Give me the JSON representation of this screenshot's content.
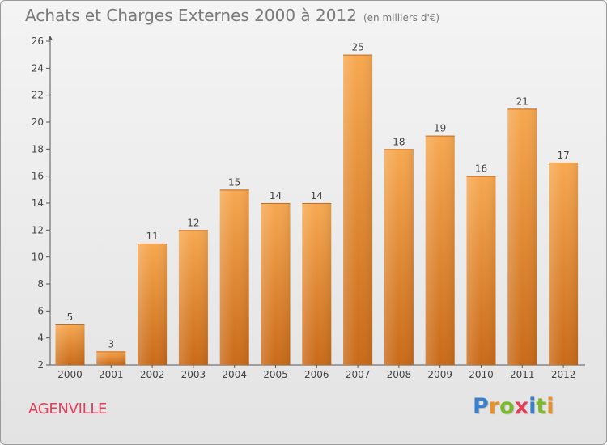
{
  "header": {
    "title": "Achats et Charges Externes 2000 à 2012",
    "unit": "(en milliers d'€)"
  },
  "footer": {
    "town": "AGENVILLE",
    "brand": "Proxiti",
    "brand_colors": [
      "#3a7fc9",
      "#e8902a",
      "#7bb82e",
      "#e0405a",
      "#3a7fc9",
      "#7bb82e",
      "#e8902a"
    ]
  },
  "chart_data": {
    "type": "bar",
    "categories": [
      "2000",
      "2001",
      "2002",
      "2003",
      "2004",
      "2005",
      "2006",
      "2007",
      "2008",
      "2009",
      "2010",
      "2011",
      "2012"
    ],
    "values": [
      5,
      3,
      11,
      12,
      15,
      14,
      14,
      25,
      18,
      19,
      16,
      21,
      17
    ],
    "ylim": [
      2,
      26
    ],
    "yticks": [
      2,
      4,
      6,
      8,
      10,
      12,
      14,
      16,
      18,
      20,
      22,
      24,
      26
    ],
    "grid": false,
    "legend": "none",
    "bar_color": "#e8882e",
    "bar_color_light": "#f7a850",
    "bar_color_dark": "#c96a18"
  }
}
